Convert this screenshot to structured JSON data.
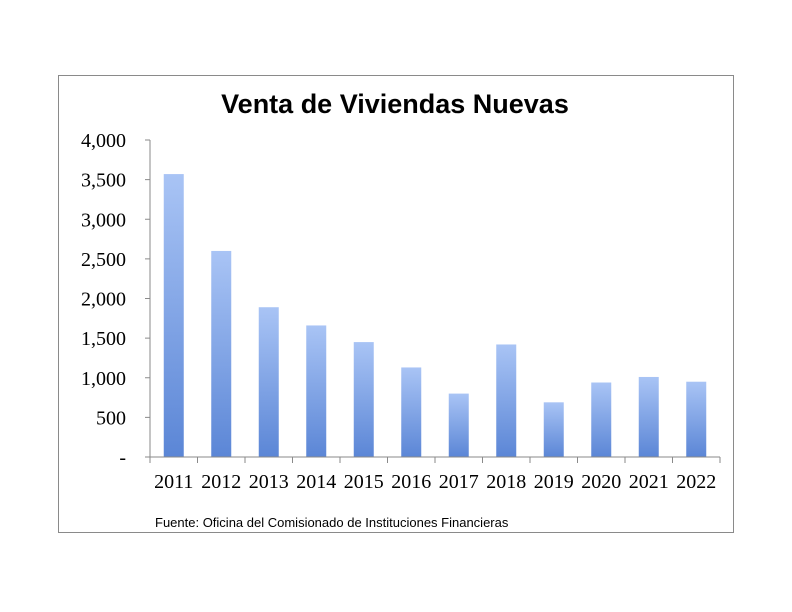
{
  "chart_data": {
    "type": "bar",
    "title": "Venta de Viviendas Nuevas",
    "categories": [
      "2011",
      "2012",
      "2013",
      "2014",
      "2015",
      "2016",
      "2017",
      "2018",
      "2019",
      "2020",
      "2021",
      "2022"
    ],
    "values": [
      3570,
      2600,
      1890,
      1660,
      1450,
      1130,
      800,
      1420,
      690,
      940,
      1010,
      950
    ],
    "ylim": [
      0,
      4000
    ],
    "yticks": [
      0,
      500,
      1000,
      1500,
      2000,
      2500,
      3000,
      3500,
      4000
    ],
    "ytick_labels": [
      "-",
      "500",
      "1,000",
      "1,500",
      "2,000",
      "2,500",
      "3,000",
      "3,500",
      "4,000"
    ],
    "grid": false,
    "legend": "none",
    "source": "Fuente: Oficina del Comisionado de Instituciones Financieras",
    "colors": {
      "bar_top": "#a9c4f5",
      "bar_bottom": "#5b86d6",
      "axis": "#8a8a8a"
    }
  }
}
